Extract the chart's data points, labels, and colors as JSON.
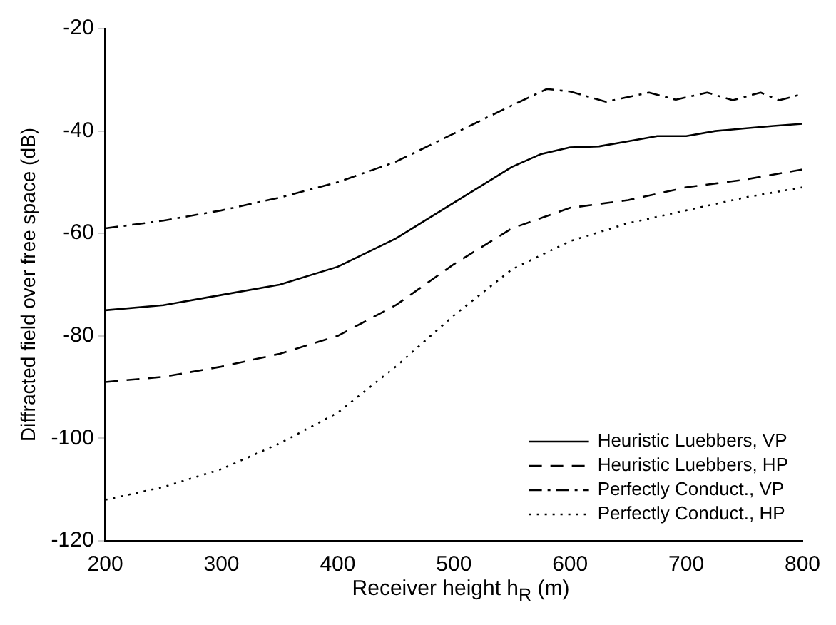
{
  "chart_data": {
    "type": "line",
    "xlabel": "Receiver height h$_{R}$ (m)",
    "ylabel": "Diffracted field over free space (dB)",
    "xlim": [
      200,
      800
    ],
    "xticks": [
      200,
      300,
      400,
      500,
      600,
      700,
      800
    ],
    "ylim": [
      -120,
      -20
    ],
    "yticks": [
      -120,
      -100,
      -80,
      -60,
      -40,
      -20
    ],
    "grid": false,
    "legend": "bottom right",
    "marker": "none",
    "series": [
      {
        "name": "Heuristic Luebbers, VP",
        "color": "#000000",
        "line_style": "solid",
        "x": [
          200,
          250,
          300,
          350,
          400,
          450,
          500,
          550,
          575,
          600,
          625,
          650,
          675,
          700,
          725,
          750,
          775,
          800
        ],
        "values": [
          -75,
          -74,
          -72,
          -70,
          -66.5,
          -61,
          -54,
          -47,
          -44.5,
          -43.2,
          -43,
          -42,
          -41,
          -41,
          -40,
          -39.5,
          -39,
          -38.6
        ]
      },
      {
        "name": "Heuristic Luebbers, HP",
        "color": "#000000",
        "line_style": "dashed",
        "x": [
          200,
          250,
          300,
          350,
          400,
          450,
          500,
          550,
          600,
          650,
          700,
          750,
          800
        ],
        "values": [
          -89,
          -88,
          -86,
          -83.5,
          -80,
          -74,
          -66,
          -59,
          -55,
          -53.5,
          -51,
          -49.5,
          -47.5
        ]
      },
      {
        "name": "Perfectly Conduct., VP",
        "color": "#000000",
        "line_style": "dashdot",
        "x": [
          200,
          250,
          300,
          350,
          400,
          450,
          500,
          550,
          580,
          600,
          631,
          668,
          691,
          718,
          740,
          764,
          780,
          800
        ],
        "values": [
          -59,
          -57.5,
          -55.5,
          -53,
          -50,
          -46,
          -40.5,
          -35,
          -31.8,
          -32.3,
          -34.3,
          -32.5,
          -33.9,
          -32.5,
          -34,
          -32.5,
          -34,
          -32.8
        ]
      },
      {
        "name": "Perfectly Conduct., HP",
        "color": "#000000",
        "line_style": "dotted",
        "x": [
          200,
          250,
          300,
          350,
          400,
          450,
          500,
          550,
          600,
          650,
          700,
          750,
          800
        ],
        "values": [
          -112,
          -109.5,
          -106,
          -101,
          -95,
          -86,
          -76,
          -67,
          -61.5,
          -58,
          -55.5,
          -53,
          -51
        ]
      }
    ]
  }
}
